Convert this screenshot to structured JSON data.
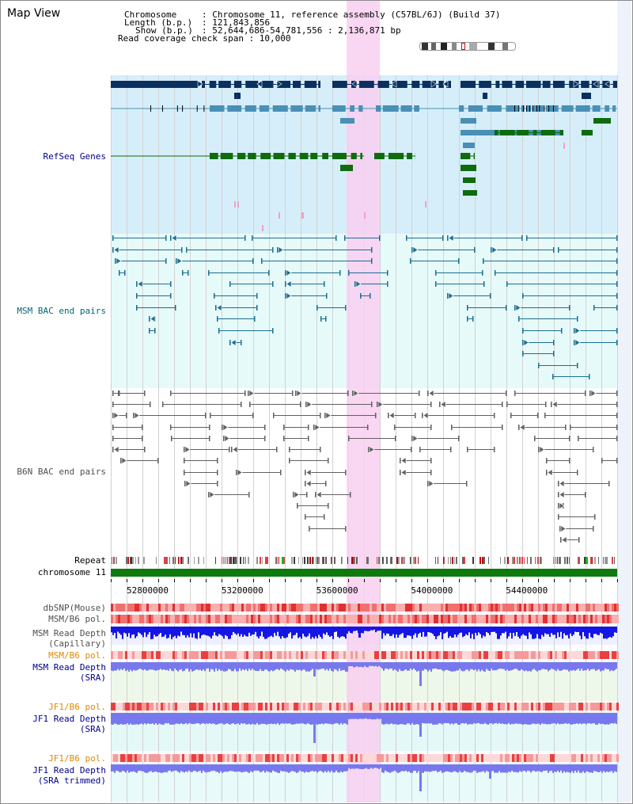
{
  "title": "Map View",
  "info": {
    "chromosome_key": "Chromosome",
    "chromosome_val": ": Chromosome 11, reference assembly (C57BL/6J) (Build 37)",
    "length_key": "Length (b.p.)",
    "length_val": ": 121,843,856",
    "show_key": "Show (b.p.)",
    "show_val": ": 52,644,686-54,781,556 : 2,136,871 bp",
    "coverage": "Read coverage check span : 10,000"
  },
  "tracks": {
    "refseq": "RefSeq Genes",
    "msm_bac": "MSM BAC end pairs",
    "b6n_bac": "B6N BAC end pairs",
    "repeat": "Repeat",
    "chromosome": "chromosome 11",
    "dbsnp": "dbSNP(Mouse)",
    "msm_b6_pol": "MSM/B6 pol.",
    "msm_read_depth_cap": "MSM Read Depth",
    "capillary": "(Capillary)",
    "msm_b6_pol2": "MSM/B6 pol.",
    "msm_read_depth_sra": "MSM Read Depth",
    "sra1": "(SRA)",
    "jf1_b6_pol": "JF1/B6 pol.",
    "jf1_read_depth": "JF1 Read Depth",
    "sra2": "(SRA)",
    "jf1_b6_pol2": "JF1/B6 pol.",
    "jf1_read_depth_trim": "JF1 Read Depth",
    "sra_trimmed": "(SRA trimmed)"
  },
  "axis": {
    "start_bp": 52644686,
    "end_bp": 54781556,
    "ticks": [
      "52800000",
      "53200000",
      "53600000",
      "54000000",
      "54400000"
    ]
  },
  "highlight": {
    "start_bp": 53640000,
    "end_bp": 53780000
  },
  "colors": {
    "refseq_bg": "#d6eefa",
    "bac_bg": "#e6fafa",
    "gene_dark": "#0b2f5e",
    "gene_mid": "#4a8fb5",
    "gene_green": "#0e6b0e",
    "msm_bac": "#1a6f8f",
    "b6n_bac": "#606060",
    "highlight": "#f8cff0",
    "chromosome_bar": "#0e7a0e",
    "depth_blue": "#1515e6",
    "depth_light": "#7878ee",
    "label_navy": "#00008b",
    "label_teal": "#006870",
    "label_gray": "#505050",
    "label_orange": "#e08800"
  }
}
